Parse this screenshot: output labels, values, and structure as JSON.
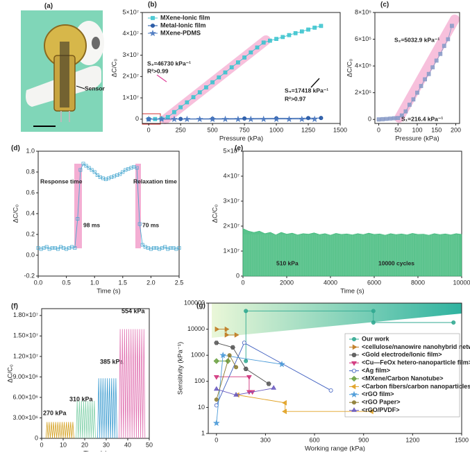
{
  "photo": {
    "label": "(a)",
    "annotation": "Sensor"
  },
  "chart_data": [
    {
      "type": "line",
      "label": "(b)",
      "x_label": "Pressure (kPa)",
      "y_label": "ΔC/C₀",
      "legend": "upper left",
      "xlim": [
        -50,
        1500
      ],
      "xticks": [
        0,
        250,
        500,
        750,
        1000,
        1250,
        1500
      ],
      "ylim": [
        -2000000,
        50000000
      ],
      "yticks": [
        0,
        {
          "value": 10000000,
          "label": "1×10⁷"
        },
        {
          "value": 20000000,
          "label": "2×10⁷"
        },
        {
          "value": 30000000,
          "label": "3×10⁷"
        },
        {
          "value": 40000000,
          "label": "4×10⁷"
        },
        {
          "value": 50000000,
          "label": "5×10⁷"
        }
      ],
      "series": [
        {
          "name": "MXene-Ionic film",
          "color": "#3cc4cf",
          "marker": "square",
          "x": [
            0,
            50,
            100,
            150,
            200,
            250,
            300,
            350,
            400,
            450,
            500,
            550,
            600,
            650,
            700,
            750,
            800,
            850,
            900,
            950,
            1000,
            1050,
            1100,
            1150,
            1200,
            1250,
            1300,
            1350
          ],
          "values": [
            0,
            50000,
            200000,
            1000000,
            3300000,
            5600000,
            7900000,
            10300000,
            12600000,
            14900000,
            17300000,
            19600000,
            21900000,
            24300000,
            26600000,
            28900000,
            31300000,
            33600000,
            35900000,
            36800000,
            37600000,
            38500000,
            39400000,
            40300000,
            41100000,
            42000000,
            42900000,
            43700000
          ]
        },
        {
          "name": "Metal-Ionic film",
          "color": "#1a4fa0",
          "marker": "circle",
          "x": [
            0,
            250,
            500,
            750,
            1000,
            1250,
            1350
          ],
          "values": [
            0,
            100000,
            200000,
            300000,
            400000,
            500000,
            550000
          ]
        },
        {
          "name": "MXene-PDMS",
          "color": "#4a78c0",
          "marker": "star",
          "x": [
            0,
            100,
            200,
            300,
            400,
            500,
            600,
            700,
            800,
            900,
            1000,
            1100,
            1200,
            1300
          ],
          "values": [
            0,
            0,
            0,
            0,
            0,
            0,
            0,
            0,
            0,
            0,
            0,
            0,
            0,
            0
          ]
        }
      ],
      "annotations": [
        {
          "text": "S₃=46730 kPa⁻¹",
          "color": "#e0409a"
        },
        {
          "text": "R²>0.99",
          "color": "#e0409a"
        },
        {
          "text": "S₄=17418 kPa⁻¹",
          "color": "#111111"
        },
        {
          "text": "R²>0.97",
          "color": "#111111"
        }
      ]
    },
    {
      "type": "line",
      "label": "(c)",
      "x_label": "Pressure (kPa)",
      "y_label": "ΔC/C₀",
      "xlim": [
        -10,
        210
      ],
      "xticks": [
        0,
        50,
        100,
        150,
        200
      ],
      "ylim": [
        -30000,
        800000
      ],
      "yticks": [
        0,
        {
          "value": 200000,
          "label": "2×10⁵"
        },
        {
          "value": 400000,
          "label": "4×10⁵"
        },
        {
          "value": 600000,
          "label": "6×10⁵"
        },
        {
          "value": 800000,
          "label": "8×10⁵"
        }
      ],
      "series": [
        {
          "name": "MXene-Ionic film",
          "color": "#8a9cc8",
          "marker": "square",
          "x": [
            0,
            10,
            20,
            30,
            40,
            50,
            60,
            70,
            80,
            90,
            100,
            110,
            120,
            130,
            140,
            150,
            160,
            170,
            180,
            190
          ],
          "values": [
            0,
            2000,
            4000,
            6500,
            9000,
            11000,
            30000,
            60000,
            110000,
            150000,
            200000,
            250000,
            300000,
            340000,
            390000,
            440000,
            490000,
            550000,
            600000,
            700000
          ]
        }
      ],
      "annotations": [
        {
          "text": "S₂=5032.9 kPa⁻¹",
          "color": "#e0409a"
        },
        {
          "text": "S₁=216.4 kPa⁻¹",
          "color": "#111111"
        }
      ]
    },
    {
      "type": "line",
      "label": "(d)",
      "x_label": "Time (s)",
      "y_label": "ΔC/C₀",
      "xlim": [
        0,
        2.5
      ],
      "xticks": [
        {
          "value": 0,
          "label": "0.0"
        },
        0.5,
        {
          "value": 1,
          "label": "1.0"
        },
        1.5,
        {
          "value": 2,
          "label": "2.0"
        },
        2.5
      ],
      "ylim": [
        -0.2,
        1.0
      ],
      "yticks": [
        -0.2,
        {
          "value": 0,
          "label": "0.0"
        },
        0.2,
        0.4,
        0.6,
        0.8,
        {
          "value": 1,
          "label": "1.0"
        }
      ],
      "series": [
        {
          "name": "ΔC/C₀",
          "color": "#4aa8d0",
          "marker": "square",
          "x": [
            0,
            0.05,
            0.1,
            0.15,
            0.2,
            0.25,
            0.3,
            0.35,
            0.4,
            0.45,
            0.5,
            0.55,
            0.6,
            0.65,
            0.7,
            0.75,
            0.8,
            0.85,
            0.9,
            0.95,
            1.0,
            1.05,
            1.1,
            1.15,
            1.2,
            1.25,
            1.3,
            1.35,
            1.4,
            1.45,
            1.5,
            1.55,
            1.6,
            1.65,
            1.7,
            1.75,
            1.8,
            1.85,
            1.9,
            1.95,
            2.0,
            2.05,
            2.1,
            2.15,
            2.2,
            2.25,
            2.3,
            2.35,
            2.4,
            2.45,
            2.5
          ],
          "values": [
            0.07,
            0.06,
            0.07,
            0.08,
            0.06,
            0.07,
            0.07,
            0.06,
            0.08,
            0.07,
            0.06,
            0.07,
            0.08,
            0.07,
            0.35,
            0.82,
            0.88,
            0.86,
            0.84,
            0.82,
            0.8,
            0.77,
            0.75,
            0.74,
            0.73,
            0.74,
            0.75,
            0.76,
            0.77,
            0.78,
            0.8,
            0.82,
            0.83,
            0.84,
            0.85,
            0.84,
            0.3,
            0.1,
            0.08,
            0.07,
            0.06,
            0.07,
            0.07,
            0.06,
            0.07,
            0.08,
            0.06,
            0.07,
            0.07,
            0.06,
            0.07
          ]
        }
      ],
      "annotations": [
        {
          "text": "Response time",
          "color": "#111111"
        },
        {
          "text": "98 ms",
          "color": "#111111"
        },
        {
          "text": "Relaxation time",
          "color": "#111111"
        },
        {
          "text": "70 ms",
          "color": "#111111"
        }
      ]
    },
    {
      "type": "area",
      "label": "(e)",
      "x_label": "Time (s)",
      "y_label": "ΔC/C₀",
      "xlim": [
        0,
        10000
      ],
      "xticks": [
        0,
        2000,
        4000,
        6000,
        8000,
        10000
      ],
      "ylim": [
        0,
        50000000
      ],
      "yticks": [
        0,
        {
          "value": 10000000,
          "label": "1×10⁷"
        },
        {
          "value": 20000000,
          "label": "2×10⁷"
        },
        {
          "value": 30000000,
          "label": "3×10⁷"
        },
        {
          "value": 40000000,
          "label": "4×10⁷"
        },
        {
          "value": 50000000,
          "label": "5×10⁷"
        }
      ],
      "series": [
        {
          "name": "510 kPa",
          "color": "#3cb878",
          "x": [
            0,
            250,
            500,
            750,
            1000,
            1250,
            1500,
            1750,
            2000,
            2250,
            2500,
            2750,
            3000,
            3250,
            3500,
            3750,
            4000,
            4250,
            4500,
            4750,
            5000,
            5250,
            5500,
            5750,
            6000,
            6250,
            6500,
            6750,
            7000,
            7250,
            7500,
            7750,
            8000,
            8250,
            8500,
            8750,
            9000,
            9250,
            9500,
            9750,
            10000
          ],
          "values": [
            19000000,
            18000000,
            17500000,
            18000000,
            17000000,
            17500000,
            16500000,
            17500000,
            16800000,
            17200000,
            16500000,
            17000000,
            16800000,
            17300000,
            16600000,
            17000000,
            16400000,
            17100000,
            16700000,
            16900000,
            16500000,
            17000000,
            16600000,
            17200000,
            16700000,
            16900000,
            16400000,
            17000000,
            16600000,
            16900000,
            16500000,
            17100000,
            16700000,
            16800000,
            16400000,
            17000000,
            16600000,
            16900000,
            16500000,
            17000000,
            16700000
          ]
        }
      ],
      "annotations": [
        {
          "text": "510 kPa",
          "color": "#111111"
        },
        {
          "text": "10000 cycles",
          "color": "#111111"
        }
      ]
    },
    {
      "type": "line",
      "label": "(f)",
      "x_label": "Time (s)",
      "y_label": "ΔC/C₀",
      "legend": "labels",
      "xlim": [
        0,
        50
      ],
      "xticks": [
        0,
        10,
        20,
        30,
        40,
        50
      ],
      "ylim": [
        0,
        19000000
      ],
      "yticks": [
        0,
        {
          "value": 3000000,
          "label": "3.00×10⁶"
        },
        {
          "value": 6000000,
          "label": "6.00×10⁶"
        },
        {
          "value": 9000000,
          "label": "9.00×10⁶"
        },
        {
          "value": 12000000,
          "label": "1.20×10⁷"
        },
        {
          "value": 15000000,
          "label": "1.50×10⁷"
        },
        {
          "value": 18000000,
          "label": "1.80×10⁷"
        }
      ],
      "series": [
        {
          "name": "270 kPa",
          "color": "#d4a020",
          "x": [
            2,
            2.5,
            3,
            3.5,
            4,
            4.5,
            5,
            5.5,
            6,
            6.5,
            7,
            7.5,
            8,
            8.5,
            9,
            9.5,
            10,
            10.5,
            11,
            11.5,
            12,
            12.5,
            13,
            13.5,
            14,
            14.5,
            15
          ],
          "values": [
            0,
            2400000,
            0,
            2400000,
            0,
            2400000,
            0,
            2400000,
            0,
            2400000,
            0,
            2400000,
            0,
            2400000,
            0,
            2400000,
            0,
            2400000,
            0,
            2400000,
            0,
            2400000,
            0,
            2400000,
            0,
            2400000,
            0
          ]
        },
        {
          "name": "310 kPa",
          "color": "#7fd0a8",
          "x": [
            16,
            16.5,
            17,
            17.5,
            18,
            18.5,
            19,
            19.5,
            20,
            20.5,
            21,
            21.5,
            22,
            22.5,
            23,
            23.5,
            24,
            24.5,
            25
          ],
          "values": [
            0,
            5500000,
            0,
            5500000,
            0,
            5500000,
            0,
            5500000,
            0,
            5500000,
            0,
            5500000,
            0,
            5500000,
            0,
            5500000,
            0,
            5500000,
            0
          ]
        },
        {
          "name": "385 kPa",
          "color": "#3a9bd0",
          "x": [
            26,
            26.5,
            27,
            27.5,
            28,
            28.5,
            29,
            29.5,
            30,
            30.5,
            31,
            31.5,
            32,
            32.5,
            33,
            33.5,
            34,
            34.5,
            35
          ],
          "values": [
            0,
            8800000,
            0,
            8800000,
            0,
            8800000,
            0,
            8800000,
            0,
            8800000,
            0,
            8800000,
            0,
            8800000,
            0,
            8800000,
            0,
            8800000,
            0
          ]
        },
        {
          "name": "554 kPa",
          "color": "#e070b0",
          "x": [
            36,
            36.5,
            37,
            37.5,
            38,
            38.5,
            39,
            39.5,
            40,
            40.5,
            41,
            41.5,
            42,
            42.5,
            43,
            43.5,
            44,
            44.5,
            45,
            45.5,
            46,
            46.5,
            47,
            47.5,
            48
          ],
          "values": [
            0,
            16000000,
            0,
            16000000,
            0,
            16000000,
            0,
            16000000,
            0,
            16000000,
            0,
            16000000,
            0,
            16000000,
            0,
            16000000,
            0,
            16000000,
            0,
            16000000,
            0,
            16000000,
            0,
            16000000,
            0
          ]
        }
      ]
    },
    {
      "type": "line",
      "label": "(g)",
      "x_label": "Working range (kPa)",
      "y_label": "Sensitivity (kPa⁻¹)",
      "legend": "right",
      "log_y": true,
      "xlim": [
        -50,
        1500
      ],
      "xticks": [
        0,
        300,
        600,
        900,
        1200,
        1500
      ],
      "ylim": [
        1,
        100000
      ],
      "yticks": [
        1,
        10,
        100,
        1000,
        10000,
        100000
      ],
      "series": [
        {
          "name": "Our work",
          "color": "#2fa890",
          "marker": "circle",
          "x": [
            180,
            180,
            960,
            960,
            1450
          ],
          "values": [
            600,
            50000,
            50000,
            18000,
            18000
          ]
        },
        {
          "name": "<cellulose/nanowire nanohybrid network>",
          "color": "#c07a20",
          "marker": "triangle-right",
          "x": [
            0,
            60,
            60,
            120
          ],
          "values": [
            10000,
            10000,
            6000,
            6000
          ]
        },
        {
          "name": "<Gold electrode/Ionic film>",
          "color": "#555555",
          "marker": "hexagon",
          "x": [
            0,
            100,
            180,
            320
          ],
          "values": [
            3000,
            2000,
            300,
            80
          ]
        },
        {
          "name": "<Cu—FeOx hetero-nanoparticle film>",
          "color": "#d0307a",
          "marker": "triangle-down",
          "x": [
            0,
            200,
            200,
            220
          ],
          "values": [
            150,
            150,
            40,
            40
          ]
        },
        {
          "name": "<Ag film>",
          "color": "#4060c0",
          "marker": "half-circle",
          "x": [
            0,
            170,
            700
          ],
          "values": [
            12,
            3000,
            45
          ]
        },
        {
          "name": "<MXene/Carbon Nanotube>",
          "color": "#6aa040",
          "marker": "diamond",
          "x": [
            0,
            70
          ],
          "values": [
            600,
            600
          ]
        },
        {
          "name": "<Carbon fibers/carbon nanoparticles>",
          "color": "#e0a020",
          "marker": "triangle-left",
          "x": [
            130,
            420,
            420,
            950
          ],
          "values": [
            30,
            15,
            7,
            7
          ]
        },
        {
          "name": "<rGO film>",
          "color": "#4a9ad8",
          "marker": "star",
          "x": [
            0,
            40,
            400
          ],
          "values": [
            2.5,
            1000,
            450
          ]
        },
        {
          "name": "<rGO Paper>",
          "color": "#8a7a30",
          "marker": "circle",
          "x": [
            0,
            80,
            120
          ],
          "values": [
            20,
            1000,
            350
          ]
        },
        {
          "name": "<rGO/PVDF>",
          "color": "#6a5ac0",
          "marker": "triangle-up",
          "x": [
            0,
            120,
            350
          ],
          "values": [
            50,
            30,
            55
          ]
        }
      ]
    }
  ]
}
